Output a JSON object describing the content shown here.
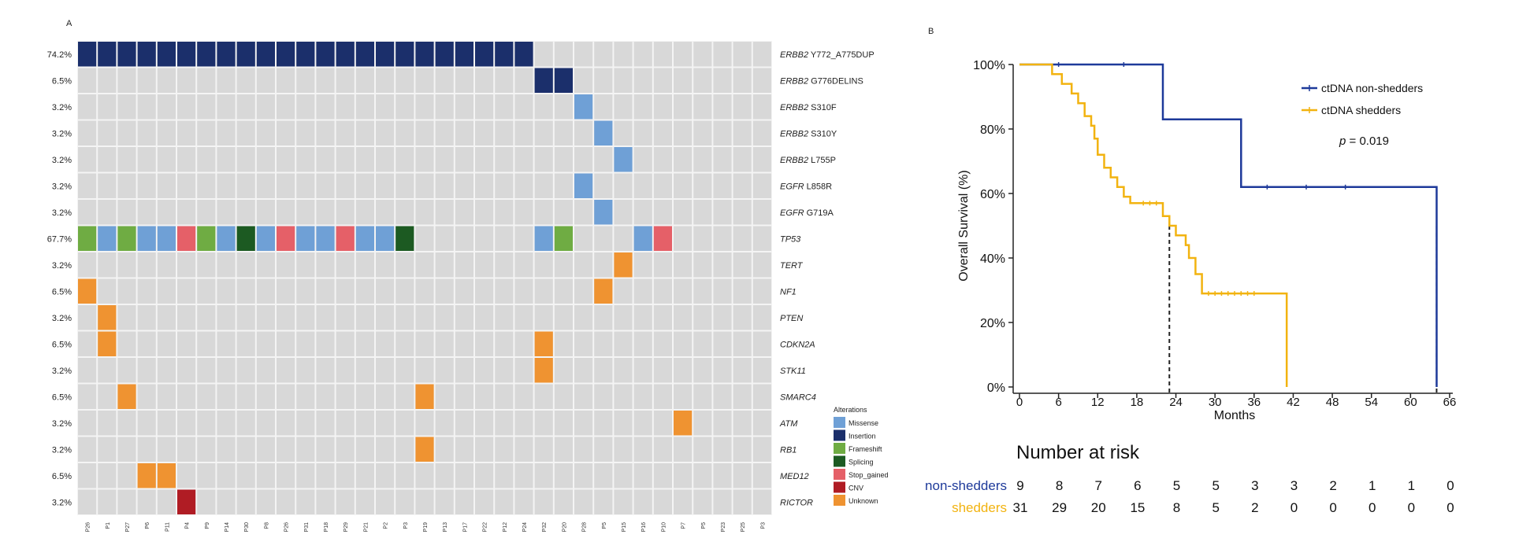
{
  "panel_a": {
    "label": "A",
    "samples": [
      "P26",
      "P1",
      "P27",
      "P6",
      "P11",
      "P4",
      "P9",
      "P14",
      "P30",
      "P8",
      "P26",
      "P31",
      "P18",
      "P29",
      "P21",
      "P2",
      "P3",
      "P19",
      "P13",
      "P17",
      "P22",
      "P12",
      "P24",
      "P32",
      "P20",
      "P28",
      "P5",
      "P15",
      "P16",
      "P10",
      "P7",
      "P5",
      "P23",
      "P25",
      "P3"
    ],
    "genes": [
      {
        "pct": "74.2%",
        "name": "ERBB2",
        "variant": " Y772_A775DUP"
      },
      {
        "pct": "6.5%",
        "name": "ERBB2",
        "variant": " G776DELINS"
      },
      {
        "pct": "3.2%",
        "name": "ERBB2",
        "variant": " S310F"
      },
      {
        "pct": "3.2%",
        "name": "ERBB2",
        "variant": " S310Y"
      },
      {
        "pct": "3.2%",
        "name": "ERBB2",
        "variant": " L755P"
      },
      {
        "pct": "3.2%",
        "name": "EGFR",
        "variant": " L858R"
      },
      {
        "pct": "3.2%",
        "name": "EGFR",
        "variant": " G719A"
      },
      {
        "pct": "67.7%",
        "name": "TP53",
        "variant": ""
      },
      {
        "pct": "3.2%",
        "name": "TERT",
        "variant": ""
      },
      {
        "pct": "6.5%",
        "name": "NF1",
        "variant": ""
      },
      {
        "pct": "3.2%",
        "name": "PTEN",
        "variant": ""
      },
      {
        "pct": "6.5%",
        "name": "CDKN2A",
        "variant": ""
      },
      {
        "pct": "3.2%",
        "name": "STK11",
        "variant": ""
      },
      {
        "pct": "6.5%",
        "name": "SMARC4",
        "variant": ""
      },
      {
        "pct": "3.2%",
        "name": "ATM",
        "variant": ""
      },
      {
        "pct": "3.2%",
        "name": "RB1",
        "variant": ""
      },
      {
        "pct": "6.5%",
        "name": "MED12",
        "variant": ""
      },
      {
        "pct": "3.2%",
        "name": "RICTOR",
        "variant": ""
      }
    ],
    "alterations": [
      [
        0,
        0,
        "Insertion"
      ],
      [
        0,
        1,
        "Insertion"
      ],
      [
        0,
        2,
        "Insertion"
      ],
      [
        0,
        3,
        "Insertion"
      ],
      [
        0,
        4,
        "Insertion"
      ],
      [
        0,
        5,
        "Insertion"
      ],
      [
        0,
        6,
        "Insertion"
      ],
      [
        0,
        7,
        "Insertion"
      ],
      [
        0,
        8,
        "Insertion"
      ],
      [
        0,
        9,
        "Insertion"
      ],
      [
        0,
        10,
        "Insertion"
      ],
      [
        0,
        11,
        "Insertion"
      ],
      [
        0,
        12,
        "Insertion"
      ],
      [
        0,
        13,
        "Insertion"
      ],
      [
        0,
        14,
        "Insertion"
      ],
      [
        0,
        15,
        "Insertion"
      ],
      [
        0,
        16,
        "Insertion"
      ],
      [
        0,
        17,
        "Insertion"
      ],
      [
        0,
        18,
        "Insertion"
      ],
      [
        0,
        19,
        "Insertion"
      ],
      [
        0,
        20,
        "Insertion"
      ],
      [
        0,
        21,
        "Insertion"
      ],
      [
        0,
        22,
        "Insertion"
      ],
      [
        1,
        23,
        "Insertion"
      ],
      [
        1,
        24,
        "Insertion"
      ],
      [
        2,
        25,
        "Missense"
      ],
      [
        3,
        26,
        "Missense"
      ],
      [
        4,
        27,
        "Missense"
      ],
      [
        5,
        25,
        "Missense"
      ],
      [
        6,
        26,
        "Missense"
      ],
      [
        7,
        0,
        "Frameshift"
      ],
      [
        7,
        1,
        "Missense"
      ],
      [
        7,
        2,
        "Frameshift"
      ],
      [
        7,
        3,
        "Missense"
      ],
      [
        7,
        4,
        "Missense"
      ],
      [
        7,
        5,
        "Stop_gained"
      ],
      [
        7,
        6,
        "Frameshift"
      ],
      [
        7,
        7,
        "Missense"
      ],
      [
        7,
        8,
        "Splicing"
      ],
      [
        7,
        9,
        "Missense"
      ],
      [
        7,
        10,
        "Stop_gained"
      ],
      [
        7,
        11,
        "Missense"
      ],
      [
        7,
        12,
        "Missense"
      ],
      [
        7,
        13,
        "Stop_gained"
      ],
      [
        7,
        14,
        "Missense"
      ],
      [
        7,
        15,
        "Missense"
      ],
      [
        7,
        16,
        "Splicing"
      ],
      [
        7,
        23,
        "Missense"
      ],
      [
        7,
        24,
        "Frameshift"
      ],
      [
        7,
        28,
        "Missense"
      ],
      [
        7,
        29,
        "Stop_gained"
      ],
      [
        8,
        27,
        "Unknown"
      ],
      [
        9,
        0,
        "Unknown"
      ],
      [
        9,
        26,
        "Unknown"
      ],
      [
        10,
        1,
        "Unknown"
      ],
      [
        11,
        1,
        "Unknown"
      ],
      [
        11,
        23,
        "Unknown"
      ],
      [
        12,
        23,
        "Unknown"
      ],
      [
        13,
        2,
        "Unknown"
      ],
      [
        13,
        17,
        "Unknown"
      ],
      [
        14,
        30,
        "Unknown"
      ],
      [
        15,
        17,
        "Unknown"
      ],
      [
        16,
        3,
        "Unknown"
      ],
      [
        16,
        4,
        "Unknown"
      ],
      [
        17,
        5,
        "CNV"
      ]
    ],
    "legend": {
      "title": "Alterations",
      "items": [
        {
          "label": "Missense",
          "color": "#6fa0d6"
        },
        {
          "label": "Insertion",
          "color": "#1b2f6b"
        },
        {
          "label": "Frameshift",
          "color": "#6fac43"
        },
        {
          "label": "Splicing",
          "color": "#1c5a22"
        },
        {
          "label": "Stop_gained",
          "color": "#e56068"
        },
        {
          "label": "CNV",
          "color": "#b01c24"
        },
        {
          "label": "Unknown",
          "color": "#ef9331"
        }
      ]
    },
    "colors": {
      "cell_bg": "#d8d8d8",
      "grid": "#f4f4f4"
    }
  },
  "panel_b": {
    "label": "B",
    "chart_data": {
      "type": "line",
      "xlabel": "Months",
      "ylabel": "Overall Survival (%)",
      "xlim": [
        0,
        66
      ],
      "ylim": [
        0,
        100
      ],
      "x_ticks": [
        0,
        6,
        12,
        18,
        24,
        30,
        36,
        42,
        48,
        54,
        60,
        66
      ],
      "y_ticks": [
        {
          "v": 0,
          "label": "0%"
        },
        {
          "v": 20,
          "label": "20%"
        },
        {
          "v": 40,
          "label": "40%"
        },
        {
          "v": 60,
          "label": "60%"
        },
        {
          "v": 80,
          "label": "80%"
        },
        {
          "v": 100,
          "label": "100%"
        }
      ],
      "series": [
        {
          "name": "ctDNA non-shedders",
          "color": "#1e3a9a",
          "steps": [
            [
              0,
              100
            ],
            [
              22,
              100
            ],
            [
              22,
              83
            ],
            [
              34,
              83
            ],
            [
              34,
              62
            ],
            [
              64,
              62
            ],
            [
              64,
              0
            ]
          ],
          "censor": [
            [
              6,
              100
            ],
            [
              16,
              100
            ],
            [
              38,
              62
            ],
            [
              44,
              62
            ],
            [
              50,
              62
            ]
          ]
        },
        {
          "name": "ctDNA shedders",
          "color": "#f2b310",
          "steps": [
            [
              0,
              100
            ],
            [
              5,
              100
            ],
            [
              5,
              97
            ],
            [
              6.5,
              97
            ],
            [
              6.5,
              94
            ],
            [
              8,
              94
            ],
            [
              8,
              91
            ],
            [
              9,
              91
            ],
            [
              9,
              88
            ],
            [
              10,
              88
            ],
            [
              10,
              84
            ],
            [
              11,
              84
            ],
            [
              11,
              81
            ],
            [
              11.5,
              81
            ],
            [
              11.5,
              77
            ],
            [
              12,
              77
            ],
            [
              12,
              72
            ],
            [
              13,
              72
            ],
            [
              13,
              68
            ],
            [
              14,
              68
            ],
            [
              14,
              65
            ],
            [
              15,
              65
            ],
            [
              15,
              62
            ],
            [
              16,
              62
            ],
            [
              16,
              59
            ],
            [
              17,
              59
            ],
            [
              17,
              57
            ],
            [
              22,
              57
            ],
            [
              22,
              53
            ],
            [
              23,
              53
            ],
            [
              23,
              50
            ],
            [
              24,
              50
            ],
            [
              24,
              47
            ],
            [
              25.5,
              47
            ],
            [
              25.5,
              44
            ],
            [
              26,
              44
            ],
            [
              26,
              40
            ],
            [
              27,
              40
            ],
            [
              27,
              35
            ],
            [
              28,
              35
            ],
            [
              28,
              29
            ],
            [
              41,
              29
            ],
            [
              41,
              0
            ]
          ],
          "censor": [
            [
              19,
              57
            ],
            [
              20,
              57
            ],
            [
              21,
              57
            ],
            [
              29,
              29
            ],
            [
              30,
              29
            ],
            [
              31,
              29
            ],
            [
              32,
              29
            ],
            [
              33,
              29
            ],
            [
              34,
              29
            ],
            [
              35,
              29
            ],
            [
              36,
              29
            ]
          ]
        }
      ],
      "median_lines": [
        {
          "x": 23,
          "y": 50
        },
        {
          "x": 64,
          "y": 50
        }
      ],
      "legend_position": "top-right",
      "annotation": {
        "p_label": "p",
        "p_value": " = 0.019"
      }
    },
    "risk_table": {
      "title": "Number at risk",
      "rows": [
        {
          "label": "non-shedders",
          "color": "#1e3a9a",
          "values": [
            "9",
            "8",
            "7",
            "6",
            "5",
            "5",
            "3",
            "3",
            "2",
            "1",
            "1",
            "0"
          ]
        },
        {
          "label": "shedders",
          "color": "#f2b310",
          "values": [
            "31",
            "29",
            "20",
            "15",
            "8",
            "5",
            "2",
            "0",
            "0",
            "0",
            "0",
            "0"
          ]
        }
      ]
    }
  }
}
